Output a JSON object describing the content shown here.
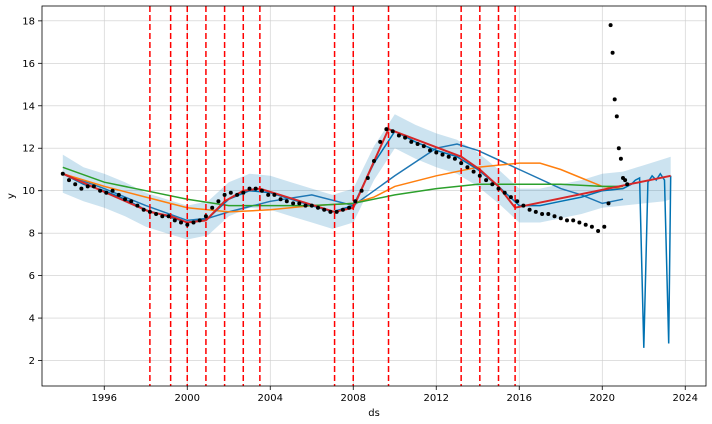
{
  "chart_data": {
    "type": "line",
    "title": "",
    "xlabel": "ds",
    "ylabel": "y",
    "xlim": [
      1993.0,
      2025.0
    ],
    "ylim": [
      0.8,
      18.7
    ],
    "x_ticks": [
      1996,
      2000,
      2004,
      2008,
      2012,
      2016,
      2020,
      2024
    ],
    "y_ticks": [
      2,
      4,
      6,
      8,
      10,
      12,
      14,
      16,
      18
    ],
    "grid": true,
    "legend": "none",
    "colors": {
      "observed": "#000000",
      "forecast": "#0072B2",
      "uncertainty": "#0072B2",
      "trend": "#d62728",
      "changepoints": "#ff0000",
      "series_blue": "#1f77b4",
      "series_orange": "#ff7f0e",
      "series_green": "#2ca02c"
    },
    "changepoints": [
      1998.2,
      1999.2,
      2000.0,
      2000.9,
      2001.8,
      2002.7,
      2003.5,
      2007.1,
      2008.0,
      2009.7,
      2013.2,
      2014.1,
      2015.0,
      2015.8
    ],
    "observed": {
      "x": [
        1994.0,
        1994.3,
        1994.6,
        1994.9,
        1995.2,
        1995.5,
        1995.8,
        1996.1,
        1996.4,
        1996.7,
        1997.0,
        1997.3,
        1997.6,
        1997.9,
        1998.2,
        1998.5,
        1998.8,
        1999.1,
        1999.4,
        1999.7,
        2000.0,
        2000.3,
        2000.6,
        2000.9,
        2001.2,
        2001.5,
        2001.8,
        2002.1,
        2002.4,
        2002.7,
        2003.0,
        2003.3,
        2003.6,
        2003.9,
        2004.2,
        2004.5,
        2004.8,
        2005.1,
        2005.4,
        2005.7,
        2006.0,
        2006.3,
        2006.6,
        2006.9,
        2007.2,
        2007.5,
        2007.8,
        2008.1,
        2008.4,
        2008.7,
        2009.0,
        2009.3,
        2009.6,
        2009.9,
        2010.2,
        2010.5,
        2010.8,
        2011.1,
        2011.4,
        2011.7,
        2012.0,
        2012.3,
        2012.6,
        2012.9,
        2013.2,
        2013.5,
        2013.8,
        2014.1,
        2014.4,
        2014.7,
        2015.0,
        2015.3,
        2015.6,
        2015.9,
        2016.2,
        2016.5,
        2016.8,
        2017.1,
        2017.4,
        2017.7,
        2018.0,
        2018.3,
        2018.6,
        2018.9,
        2019.2,
        2019.5,
        2019.8,
        2020.1,
        2020.3,
        2020.4,
        2020.5,
        2020.6,
        2020.7,
        2020.8,
        2020.9,
        2021.0,
        2021.1,
        2021.2
      ],
      "y": [
        10.8,
        10.5,
        10.3,
        10.1,
        10.2,
        10.2,
        10.0,
        9.9,
        10.0,
        9.8,
        9.6,
        9.5,
        9.3,
        9.1,
        9.0,
        8.9,
        8.8,
        8.8,
        8.6,
        8.5,
        8.4,
        8.5,
        8.6,
        8.8,
        9.2,
        9.5,
        9.8,
        9.9,
        9.8,
        9.9,
        10.1,
        10.1,
        10.0,
        9.8,
        9.8,
        9.6,
        9.5,
        9.4,
        9.4,
        9.3,
        9.3,
        9.2,
        9.1,
        9.0,
        9.0,
        9.1,
        9.2,
        9.5,
        10.0,
        10.6,
        11.4,
        12.3,
        12.9,
        12.8,
        12.6,
        12.5,
        12.3,
        12.2,
        12.1,
        11.9,
        11.8,
        11.7,
        11.6,
        11.5,
        11.3,
        11.1,
        10.9,
        10.7,
        10.5,
        10.3,
        10.1,
        9.9,
        9.7,
        9.5,
        9.3,
        9.1,
        9.0,
        8.9,
        8.9,
        8.8,
        8.7,
        8.6,
        8.6,
        8.5,
        8.4,
        8.3,
        8.1,
        8.3,
        9.4,
        17.8,
        16.5,
        14.3,
        13.5,
        12.0,
        11.5,
        10.6,
        10.5,
        10.3
      ]
    },
    "forecast": {
      "x": [
        1994.0,
        1995.0,
        1996.0,
        1997.0,
        1998.0,
        1999.0,
        2000.0,
        2001.0,
        2002.0,
        2003.0,
        2004.0,
        2005.0,
        2006.0,
        2007.0,
        2008.0,
        2009.0,
        2010.0,
        2011.0,
        2012.0,
        2013.0,
        2014.0,
        2015.0,
        2016.0,
        2017.0,
        2018.0,
        2019.0,
        2020.0,
        2021.0,
        2021.4,
        2021.6,
        2021.8,
        2022.0,
        2022.2,
        2022.4,
        2022.6,
        2022.8,
        2023.0,
        2023.2,
        2023.3
      ],
      "y": [
        10.8,
        10.3,
        10.0,
        9.6,
        9.1,
        8.8,
        8.5,
        8.7,
        9.6,
        10.0,
        9.9,
        9.6,
        9.3,
        9.0,
        9.3,
        11.3,
        12.8,
        12.3,
        11.9,
        11.6,
        11.0,
        10.2,
        9.3,
        9.3,
        9.5,
        9.7,
        10.0,
        10.1,
        10.3,
        10.5,
        10.6,
        2.6,
        10.4,
        10.7,
        10.5,
        10.8,
        10.5,
        2.8,
        10.7
      ]
    },
    "uncertainty": {
      "x": [
        1994.0,
        1995.0,
        1996.0,
        1997.0,
        1998.0,
        1999.0,
        2000.0,
        2001.0,
        2002.0,
        2003.0,
        2004.0,
        2005.0,
        2006.0,
        2007.0,
        2008.0,
        2009.0,
        2010.0,
        2011.0,
        2012.0,
        2013.0,
        2014.0,
        2015.0,
        2016.0,
        2017.0,
        2018.0,
        2019.0,
        2020.0,
        2021.0,
        2022.0,
        2023.0,
        2023.3
      ],
      "lower": [
        9.9,
        9.5,
        9.2,
        8.8,
        8.3,
        8.0,
        7.7,
        7.9,
        8.8,
        9.2,
        9.1,
        8.8,
        8.5,
        8.2,
        8.5,
        10.5,
        12.0,
        11.5,
        11.1,
        10.8,
        10.2,
        9.4,
        8.5,
        8.5,
        8.7,
        8.9,
        9.2,
        9.3,
        9.4,
        9.5,
        9.6
      ],
      "upper": [
        11.7,
        11.1,
        10.8,
        10.4,
        9.9,
        9.6,
        9.3,
        9.5,
        10.4,
        10.8,
        10.7,
        10.4,
        10.1,
        9.8,
        10.1,
        12.1,
        13.6,
        13.1,
        12.7,
        12.4,
        11.8,
        11.0,
        10.1,
        10.1,
        10.3,
        10.5,
        10.8,
        10.9,
        11.2,
        11.5,
        11.6
      ]
    },
    "trend": {
      "x": [
        1994.0,
        1998.2,
        1999.2,
        2000.0,
        2000.9,
        2001.8,
        2002.7,
        2003.5,
        2007.1,
        2008.0,
        2009.7,
        2013.2,
        2014.1,
        2015.0,
        2015.8,
        2023.3
      ],
      "y": [
        10.8,
        9.0,
        8.8,
        8.5,
        8.6,
        9.5,
        10.0,
        10.1,
        9.0,
        9.2,
        12.9,
        11.6,
        11.0,
        10.2,
        9.2,
        10.7
      ]
    },
    "extra_series": [
      {
        "color": "series_blue",
        "x": [
          1994.0,
          1996.0,
          1998.0,
          2000.0,
          2001.0,
          2002.0,
          2004.0,
          2006.0,
          2008.0,
          2010.0,
          2012.0,
          2013.0,
          2014.0,
          2016.0,
          2018.0,
          2019.0,
          2020.0,
          2020.5,
          2021.0
        ],
        "y": [
          10.8,
          10.1,
          9.3,
          8.6,
          8.7,
          9.0,
          9.5,
          9.8,
          9.3,
          10.7,
          12.0,
          12.2,
          11.9,
          11.0,
          10.1,
          9.8,
          9.4,
          9.5,
          9.6
        ]
      },
      {
        "color": "series_orange",
        "x": [
          1994.0,
          1996.0,
          1998.0,
          2000.0,
          2002.0,
          2004.0,
          2006.0,
          2008.0,
          2009.0,
          2010.0,
          2012.0,
          2014.0,
          2016.0,
          2017.0,
          2018.0,
          2019.0,
          2020.0,
          2021.0
        ],
        "y": [
          10.8,
          10.2,
          9.7,
          9.2,
          9.0,
          9.1,
          9.3,
          9.4,
          9.7,
          10.2,
          10.7,
          11.1,
          11.3,
          11.3,
          11.0,
          10.6,
          10.2,
          10.1
        ]
      },
      {
        "color": "series_green",
        "x": [
          1994.0,
          1996.0,
          1998.0,
          2000.0,
          2002.0,
          2004.0,
          2006.0,
          2008.0,
          2010.0,
          2012.0,
          2014.0,
          2016.0,
          2018.0,
          2020.0,
          2021.0
        ],
        "y": [
          11.1,
          10.4,
          10.0,
          9.6,
          9.3,
          9.3,
          9.3,
          9.4,
          9.8,
          10.1,
          10.3,
          10.3,
          10.3,
          10.2,
          10.2
        ]
      }
    ]
  }
}
